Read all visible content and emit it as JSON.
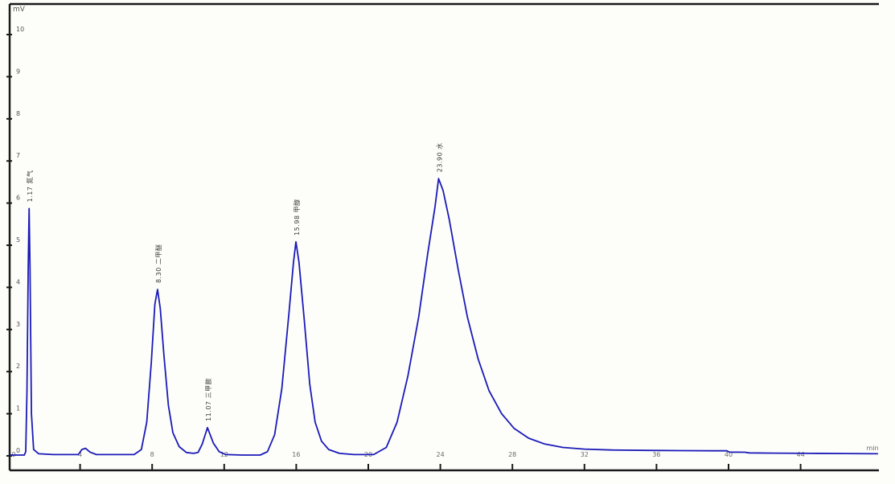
{
  "chart_data": {
    "type": "line",
    "title": "",
    "legend": "none",
    "grid": false,
    "line_color": "#1a1ab8",
    "frame_color": "#1a1a1a",
    "axis_label_color": "#555555",
    "peak_label_color": "#3a3a3a",
    "y_axis": {
      "unit": "mV",
      "ticks": [
        10,
        9,
        8,
        7,
        6,
        5,
        4,
        3,
        2,
        1,
        0
      ],
      "range": [
        0,
        10.6
      ]
    },
    "x_axis": {
      "unit": "min",
      "ticks": [
        0,
        4,
        8,
        12,
        16,
        20,
        24,
        28,
        32,
        36,
        40,
        44
      ],
      "range": [
        0,
        48.5
      ]
    },
    "peaks": [
      {
        "label": "1.17 氮气",
        "name": "氮气",
        "retention_min": 1.17,
        "height_mV": 5.87
      },
      {
        "label": "8.30 二甲醚",
        "name": "二甲醚",
        "retention_min": 8.3,
        "height_mV": 3.95
      },
      {
        "label": "11.07 三甲胺",
        "name": "三甲胺",
        "retention_min": 11.07,
        "height_mV": 0.67
      },
      {
        "label": "15.98 甲醇",
        "name": "甲醇",
        "retention_min": 15.98,
        "height_mV": 5.08
      },
      {
        "label": "23.90 水",
        "name": "水",
        "retention_min": 23.9,
        "height_mV": 6.58
      }
    ],
    "trace": [
      [
        0.1,
        0.02
      ],
      [
        0.9,
        0.02
      ],
      [
        0.98,
        0.1
      ],
      [
        1.05,
        1.5
      ],
      [
        1.12,
        4.5
      ],
      [
        1.17,
        5.87
      ],
      [
        1.22,
        4.5
      ],
      [
        1.3,
        1.0
      ],
      [
        1.42,
        0.15
      ],
      [
        1.7,
        0.05
      ],
      [
        2.5,
        0.03
      ],
      [
        3.9,
        0.03
      ],
      [
        4.1,
        0.15
      ],
      [
        4.3,
        0.18
      ],
      [
        4.55,
        0.09
      ],
      [
        4.9,
        0.03
      ],
      [
        7.0,
        0.03
      ],
      [
        7.4,
        0.15
      ],
      [
        7.7,
        0.8
      ],
      [
        7.95,
        2.2
      ],
      [
        8.15,
        3.6
      ],
      [
        8.3,
        3.95
      ],
      [
        8.45,
        3.5
      ],
      [
        8.65,
        2.4
      ],
      [
        8.9,
        1.2
      ],
      [
        9.15,
        0.55
      ],
      [
        9.5,
        0.22
      ],
      [
        9.9,
        0.08
      ],
      [
        10.3,
        0.06
      ],
      [
        10.55,
        0.08
      ],
      [
        10.78,
        0.28
      ],
      [
        11.07,
        0.67
      ],
      [
        11.4,
        0.3
      ],
      [
        11.72,
        0.1
      ],
      [
        12.1,
        0.03
      ],
      [
        13.0,
        0.02
      ],
      [
        14.0,
        0.02
      ],
      [
        14.4,
        0.1
      ],
      [
        14.8,
        0.5
      ],
      [
        15.2,
        1.6
      ],
      [
        15.6,
        3.4
      ],
      [
        15.85,
        4.6
      ],
      [
        15.98,
        5.08
      ],
      [
        16.15,
        4.6
      ],
      [
        16.45,
        3.2
      ],
      [
        16.75,
        1.7
      ],
      [
        17.05,
        0.8
      ],
      [
        17.4,
        0.35
      ],
      [
        17.8,
        0.15
      ],
      [
        18.4,
        0.06
      ],
      [
        19.2,
        0.03
      ],
      [
        20.3,
        0.03
      ],
      [
        21.0,
        0.2
      ],
      [
        21.6,
        0.8
      ],
      [
        22.2,
        1.9
      ],
      [
        22.8,
        3.3
      ],
      [
        23.3,
        4.8
      ],
      [
        23.7,
        5.9
      ],
      [
        23.9,
        6.58
      ],
      [
        24.15,
        6.3
      ],
      [
        24.5,
        5.6
      ],
      [
        25.0,
        4.4
      ],
      [
        25.5,
        3.3
      ],
      [
        26.1,
        2.3
      ],
      [
        26.7,
        1.55
      ],
      [
        27.4,
        1.0
      ],
      [
        28.1,
        0.65
      ],
      [
        28.9,
        0.42
      ],
      [
        29.8,
        0.28
      ],
      [
        30.8,
        0.2
      ],
      [
        32.0,
        0.16
      ],
      [
        33.5,
        0.14
      ],
      [
        35.5,
        0.13
      ],
      [
        37.5,
        0.125
      ],
      [
        39.2,
        0.12
      ],
      [
        39.9,
        0.12
      ],
      [
        40.05,
        0.09
      ],
      [
        40.9,
        0.085
      ],
      [
        41.15,
        0.07
      ],
      [
        42.5,
        0.065
      ],
      [
        44.5,
        0.06
      ],
      [
        46.5,
        0.055
      ],
      [
        48.3,
        0.05
      ]
    ]
  }
}
